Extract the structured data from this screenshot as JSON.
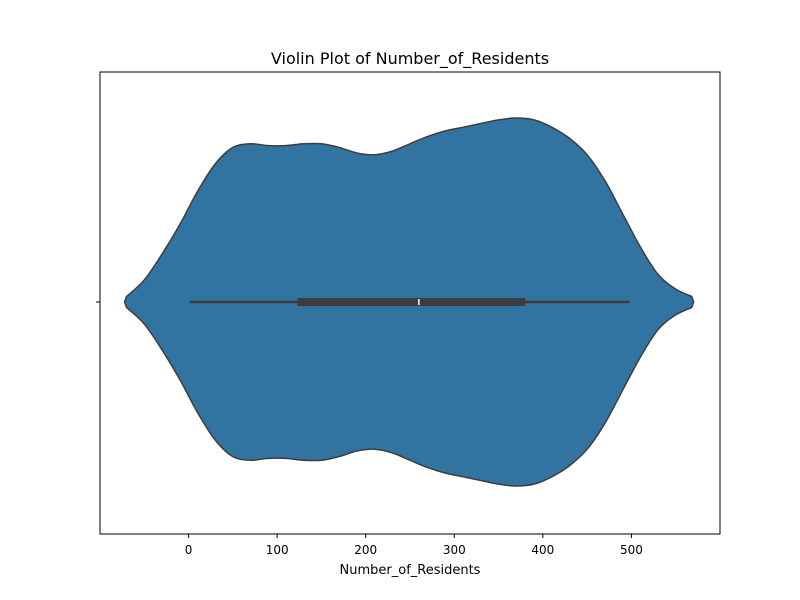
{
  "chart_data": {
    "type": "violin",
    "title": "Violin Plot of Number_of_Residents",
    "xlabel": "Number_of_Residents",
    "ylabel": "",
    "xlim": [
      -100,
      600
    ],
    "xticks": [
      0,
      100,
      200,
      300,
      400,
      500
    ],
    "xtick_labels": [
      "0",
      "100",
      "200",
      "300",
      "400",
      "500"
    ],
    "fill_color": "#3274a1",
    "edge_color": "#3d3d3d",
    "summary": {
      "min": 1,
      "q1": 123,
      "median": 260,
      "q3": 380,
      "max": 498
    },
    "density": {
      "x": [
        -70,
        -50,
        -30,
        -10,
        10,
        30,
        50,
        70,
        90,
        110,
        130,
        150,
        170,
        190,
        210,
        230,
        250,
        270,
        290,
        310,
        330,
        350,
        370,
        390,
        410,
        430,
        450,
        470,
        490,
        510,
        530,
        550,
        568
      ],
      "width": [
        0.03,
        0.12,
        0.26,
        0.42,
        0.6,
        0.75,
        0.84,
        0.86,
        0.85,
        0.85,
        0.86,
        0.86,
        0.84,
        0.81,
        0.8,
        0.82,
        0.86,
        0.9,
        0.93,
        0.95,
        0.97,
        0.99,
        1.0,
        0.99,
        0.95,
        0.89,
        0.8,
        0.66,
        0.48,
        0.3,
        0.15,
        0.07,
        0.03
      ]
    }
  }
}
